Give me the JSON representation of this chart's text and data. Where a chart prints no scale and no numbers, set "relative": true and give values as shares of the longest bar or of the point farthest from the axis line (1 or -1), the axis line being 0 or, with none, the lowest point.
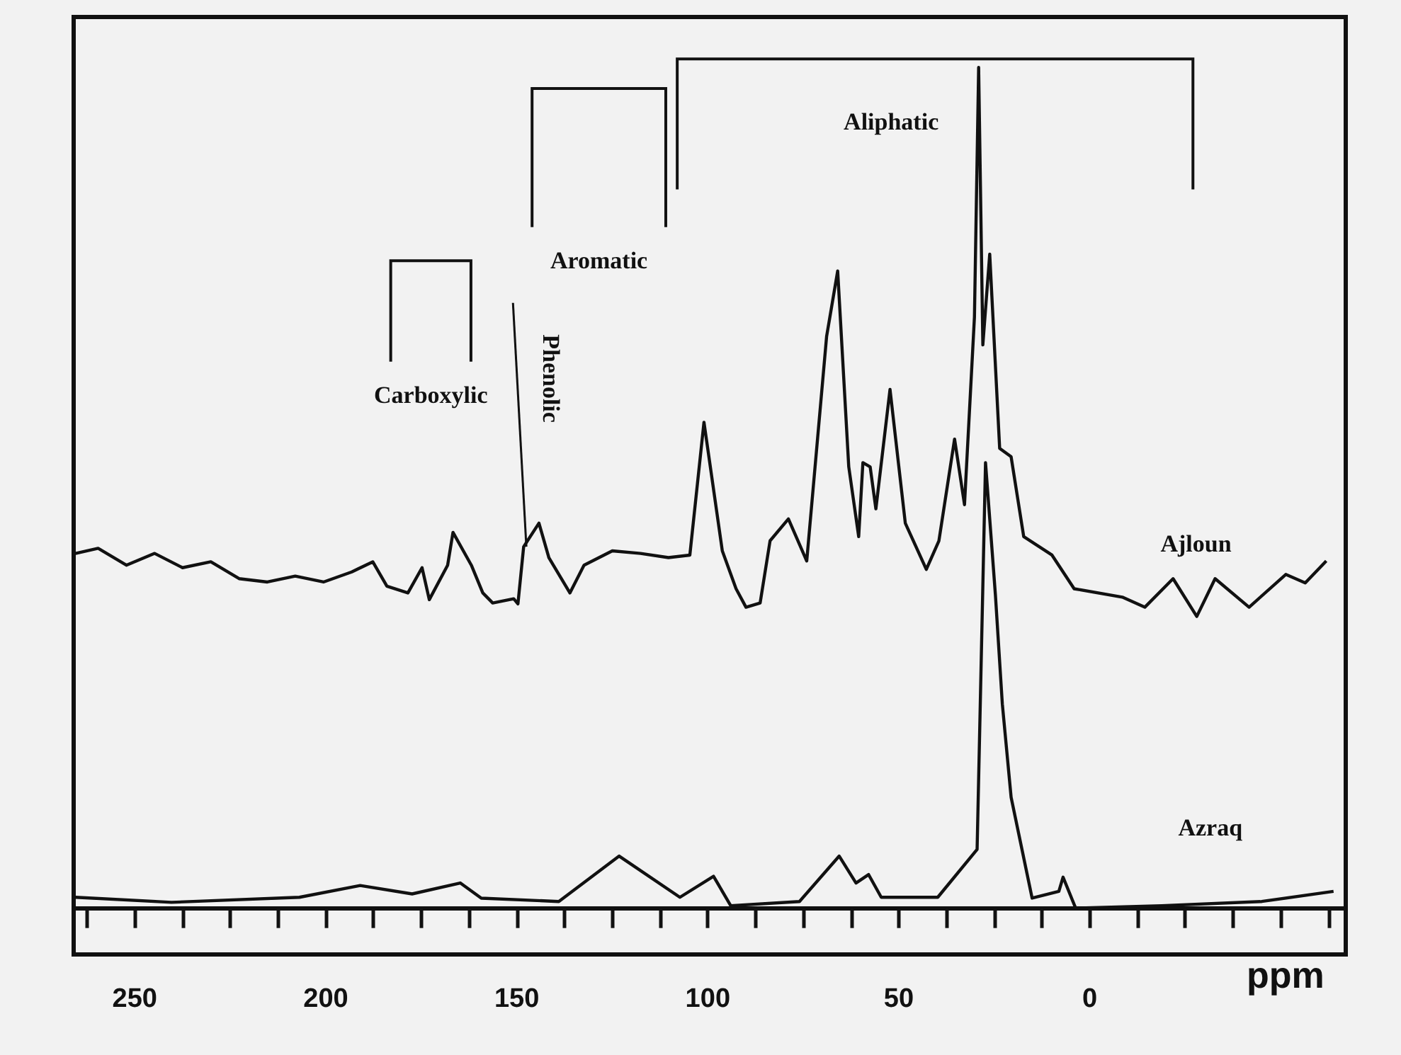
{
  "chart_data": {
    "type": "line",
    "relative": true,
    "xlabel": "ppm",
    "xlim": [
      266,
      -67
    ],
    "xticks": [
      {
        "value": 262.5,
        "label": null
      },
      250,
      {
        "value": 237.5,
        "label": null
      },
      {
        "value": 225,
        "label": null
      },
      {
        "value": 212.5,
        "label": null
      },
      200,
      {
        "value": 187.5,
        "label": null
      },
      {
        "value": 175,
        "label": null
      },
      {
        "value": 162.5,
        "label": null
      },
      150,
      {
        "value": 137.5,
        "label": null
      },
      {
        "value": 125,
        "label": null
      },
      {
        "value": 112.5,
        "label": null
      },
      100,
      {
        "value": 87.5,
        "label": null
      },
      {
        "value": 75,
        "label": null
      },
      {
        "value": 62.5,
        "label": null
      },
      50,
      {
        "value": 37.5,
        "label": null
      },
      {
        "value": 25,
        "label": null
      },
      {
        "value": 12.5,
        "label": null
      },
      0,
      {
        "value": -12.5,
        "label": null
      },
      {
        "value": -25,
        "label": null
      },
      {
        "value": -37.5,
        "label": null
      },
      {
        "value": -50,
        "label": null
      },
      {
        "value": -62.5,
        "label": null
      }
    ],
    "tick_labels": "x",
    "grid": false,
    "legend": false,
    "marker": "none",
    "line_style": "solid",
    "series": [
      {
        "name": "Ajloun",
        "color": "#111111",
        "x": [
          265.5,
          259.6,
          252.2,
          244.8,
          237.5,
          230.1,
          222.7,
          215.3,
          208.0,
          200.6,
          193.2,
          187.7,
          184.0,
          178.5,
          174.8,
          172.9,
          168.1,
          166.7,
          161.9,
          158.9,
          156.3,
          150.8,
          149.7,
          148.2,
          144.2,
          141.6,
          136.1,
          132.4,
          125.0,
          117.6,
          110.3,
          104.7,
          101.0,
          96.2,
          92.6,
          90.0,
          86.3,
          83.7,
          78.9,
          74.1,
          68.9,
          66.0,
          63.1,
          60.5,
          59.4,
          57.5,
          56.0,
          52.3,
          48.3,
          42.8,
          39.5,
          35.4,
          32.8,
          30.2,
          29.1,
          28.0,
          26.2,
          23.6,
          20.6,
          17.3,
          9.9,
          4.1,
          -8.5,
          -14.4,
          -21.8,
          -28.0,
          -32.8,
          -41.7,
          -51.3,
          -56.4,
          -61.9
        ],
        "values": [
          0.422,
          0.428,
          0.408,
          0.422,
          0.405,
          0.412,
          0.392,
          0.388,
          0.395,
          0.388,
          0.4,
          0.412,
          0.383,
          0.375,
          0.405,
          0.367,
          0.408,
          0.447,
          0.408,
          0.375,
          0.363,
          0.368,
          0.362,
          0.43,
          0.458,
          0.417,
          0.375,
          0.408,
          0.425,
          0.422,
          0.417,
          0.42,
          0.578,
          0.425,
          0.38,
          0.358,
          0.363,
          0.437,
          0.463,
          0.413,
          0.68,
          0.758,
          0.525,
          0.442,
          0.53,
          0.525,
          0.475,
          0.617,
          0.458,
          0.403,
          0.437,
          0.558,
          0.48,
          0.703,
          1.0,
          0.67,
          0.778,
          0.547,
          0.537,
          0.442,
          0.42,
          0.38,
          0.37,
          0.358,
          0.392,
          0.347,
          0.392,
          0.358,
          0.397,
          0.387,
          0.413
        ]
      },
      {
        "name": "Azraq",
        "color": "#111111",
        "x": [
          265.5,
          240.4,
          206.9,
          191.0,
          177.4,
          164.8,
          159.3,
          139.0,
          123.2,
          107.3,
          98.5,
          94.0,
          76.0,
          65.6,
          61.2,
          57.9,
          54.6,
          39.8,
          29.5,
          27.3,
          24.7,
          22.9,
          20.6,
          15.1,
          8.1,
          7.0,
          3.7,
          -18.8,
          -45.0,
          -63.8
        ],
        "values": [
          0.013,
          0.007,
          0.013,
          0.027,
          0.017,
          0.03,
          0.012,
          0.008,
          0.062,
          0.013,
          0.038,
          0.003,
          0.008,
          0.062,
          0.03,
          0.04,
          0.013,
          0.013,
          0.07,
          0.53,
          0.372,
          0.243,
          0.132,
          0.012,
          0.02,
          0.037,
          0,
          0.003,
          0.008,
          0.02
        ]
      }
    ],
    "annotations": [
      "Carboxylic",
      "Aromatic",
      "Aliphatic",
      "Phenolic"
    ]
  }
}
